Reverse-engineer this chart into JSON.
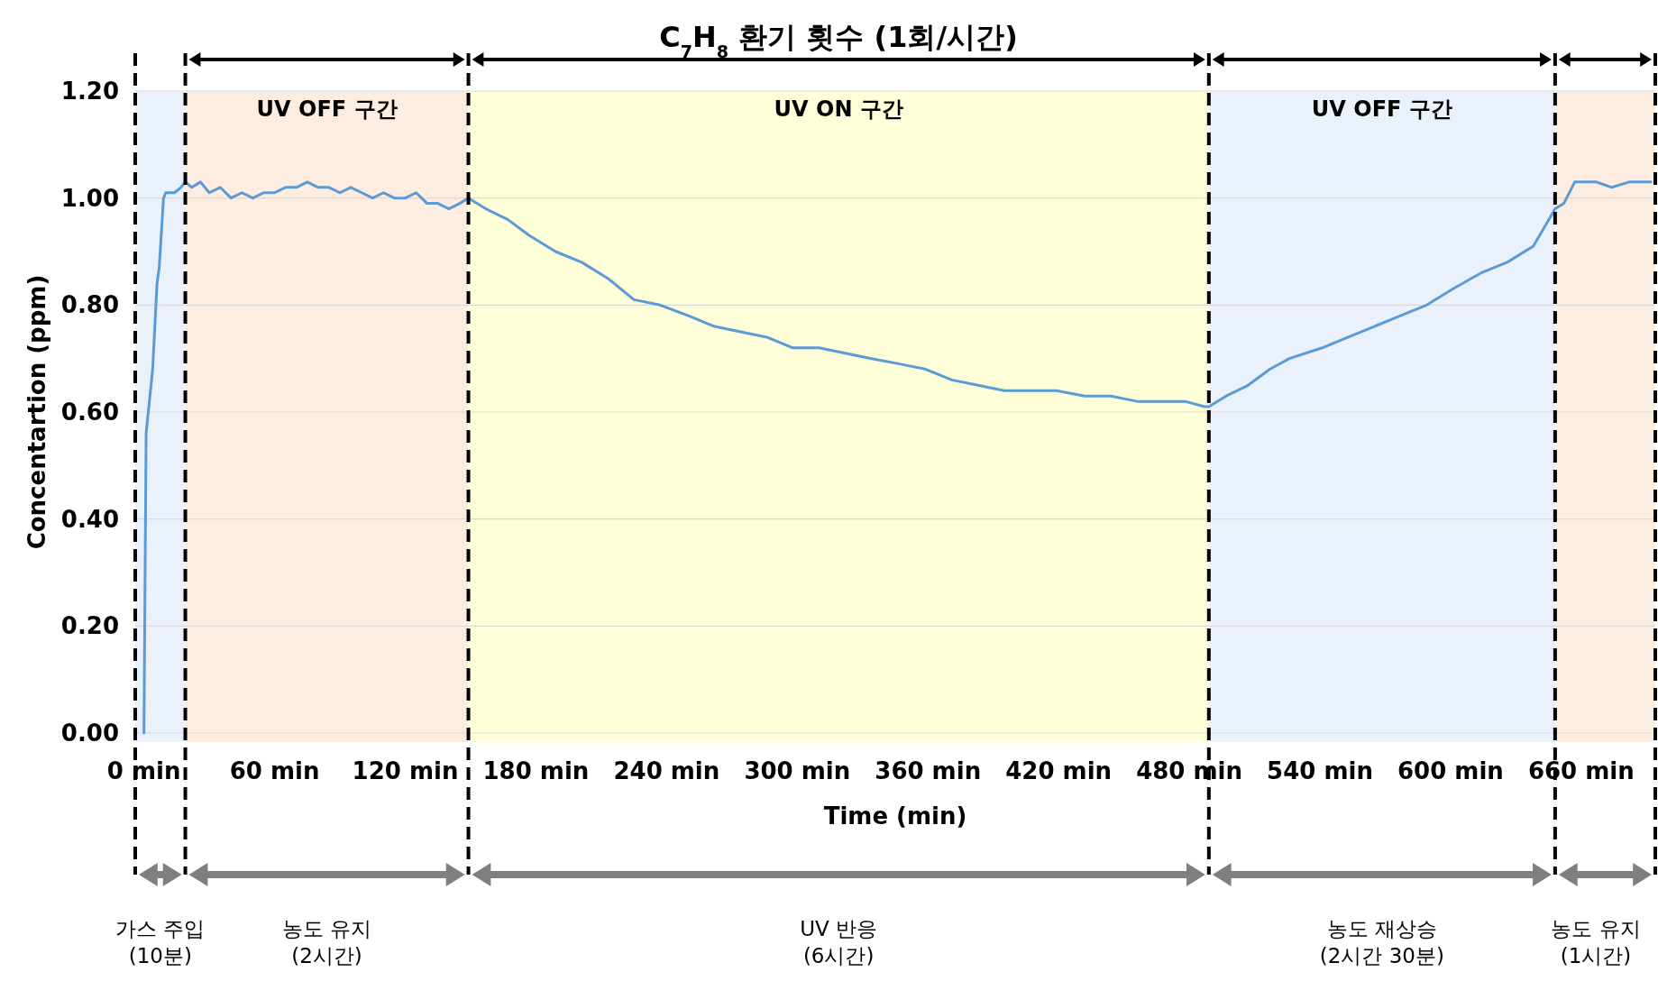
{
  "chart_data": {
    "type": "line",
    "title": "C$_{7}$H$_{8}$ 환기 횟수 (1회/시간)",
    "xlabel": "Time (min)",
    "ylabel": "Concentartion (ppm)",
    "x": [
      0,
      1,
      4,
      6,
      7,
      9,
      10,
      14,
      17,
      19,
      22,
      26,
      30,
      35,
      40,
      45,
      50,
      55,
      60,
      65,
      70,
      75,
      80,
      85,
      90,
      95,
      100,
      105,
      110,
      115,
      120,
      125,
      130,
      135,
      140,
      145,
      149,
      157,
      167,
      177,
      189,
      201,
      213,
      225,
      237,
      250,
      262,
      274,
      286,
      298,
      310,
      322,
      334,
      347,
      359,
      371,
      383,
      395,
      407,
      419,
      432,
      444,
      456,
      468,
      478,
      487,
      489,
      497,
      507,
      517,
      526,
      541,
      553,
      565,
      577,
      589,
      601,
      614,
      626,
      638,
      648,
      652,
      657,
      662,
      667,
      674,
      682,
      689,
      692
    ],
    "values": [
      0,
      0.56,
      0.68,
      0.84,
      0.87,
      1.0,
      1.01,
      1.01,
      1.02,
      1.03,
      1.02,
      1.03,
      1.01,
      1.02,
      1.0,
      1.01,
      1.0,
      1.01,
      1.01,
      1.02,
      1.02,
      1.03,
      1.02,
      1.02,
      1.01,
      1.02,
      1.01,
      1.0,
      1.01,
      1.0,
      1.0,
      1.01,
      0.99,
      0.99,
      0.98,
      0.99,
      1.0,
      0.98,
      0.96,
      0.93,
      0.9,
      0.88,
      0.85,
      0.81,
      0.8,
      0.78,
      0.76,
      0.75,
      0.74,
      0.72,
      0.72,
      0.71,
      0.7,
      0.69,
      0.68,
      0.66,
      0.65,
      0.64,
      0.64,
      0.64,
      0.63,
      0.63,
      0.62,
      0.62,
      0.62,
      0.61,
      0.61,
      0.63,
      0.65,
      0.68,
      0.7,
      0.72,
      0.74,
      0.76,
      0.78,
      0.8,
      0.83,
      0.86,
      0.88,
      0.91,
      0.98,
      0.99,
      1.03,
      1.03,
      1.03,
      1.02,
      1.03,
      1.03,
      1.03
    ],
    "color": "#5b9bd5",
    "xlim": [
      -4,
      694
    ],
    "xticks": [
      {
        "value": 0,
        "label": "0 min"
      },
      {
        "value": 60,
        "label": "60 min"
      },
      {
        "value": 120,
        "label": "120 min"
      },
      {
        "value": 180,
        "label": "180 min"
      },
      {
        "value": 240,
        "label": "240 min"
      },
      {
        "value": 300,
        "label": "300 min"
      },
      {
        "value": 360,
        "label": "360 min"
      },
      {
        "value": 420,
        "label": "420 min"
      },
      {
        "value": 480,
        "label": "480 min"
      },
      {
        "value": 540,
        "label": "540 min"
      },
      {
        "value": 600,
        "label": "600 min"
      },
      {
        "value": 660,
        "label": "660 min"
      }
    ],
    "ylim": [
      0,
      1.2
    ],
    "yticks": [
      {
        "value": 0,
        "label": "0.00"
      },
      {
        "value": 0.2,
        "label": "0.20"
      },
      {
        "value": 0.4,
        "label": "0.40"
      },
      {
        "value": 0.6,
        "label": "0.60"
      },
      {
        "value": 0.8,
        "label": "0.80"
      },
      {
        "value": 1.0,
        "label": "1.00"
      },
      {
        "value": 1.2,
        "label": "1.20"
      }
    ],
    "grid": "y",
    "bands": [
      {
        "axis": "x",
        "from": -4,
        "to": 19,
        "label": null,
        "color": "#eaf1fb"
      },
      {
        "axis": "x",
        "from": 19,
        "to": 149,
        "label": "UV OFF 구간",
        "color": "#fdece0"
      },
      {
        "axis": "x",
        "from": 149,
        "to": 489,
        "label": "UV ON 구간",
        "color": "#fefed8"
      },
      {
        "axis": "x",
        "from": 489,
        "to": 648,
        "label": "UV OFF 구간",
        "color": "#eaf1fb"
      },
      {
        "axis": "x",
        "from": 648,
        "to": 694,
        "label": null,
        "color": "#fdece0"
      }
    ],
    "ref_lines": [
      {
        "axis": "x",
        "value": -4,
        "color": "#000000",
        "line_style": "dashed"
      },
      {
        "axis": "x",
        "value": 19,
        "color": "#000000",
        "line_style": "dashed"
      },
      {
        "axis": "x",
        "value": 149,
        "color": "#000000",
        "line_style": "dashed"
      },
      {
        "axis": "x",
        "value": 489,
        "color": "#000000",
        "line_style": "dashed"
      },
      {
        "axis": "x",
        "value": 648,
        "color": "#000000",
        "line_style": "dashed"
      },
      {
        "axis": "x",
        "value": 694,
        "color": "#000000",
        "line_style": "dashed"
      }
    ],
    "annotations": [
      "가스 주입\n(10분)",
      "농도 유지\n(2시간)",
      "UV 반응\n(6시간)",
      "농도 재상승\n(2시간 30분)",
      "농도 유지\n(1시간)"
    ]
  }
}
